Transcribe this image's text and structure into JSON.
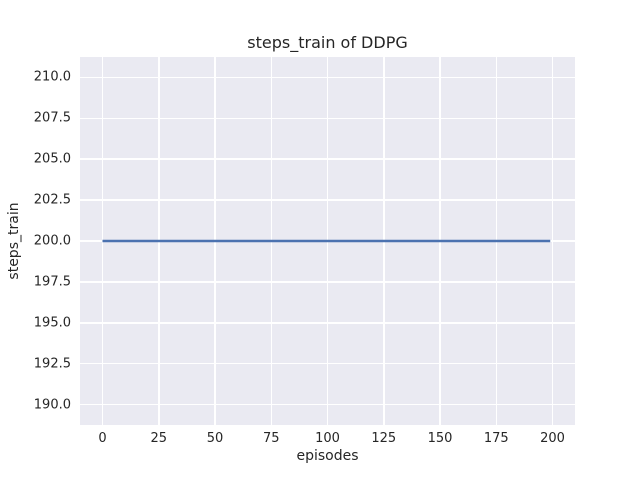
{
  "chart_data": {
    "type": "line",
    "title": "steps_train of DDPG",
    "xlabel": "episodes",
    "ylabel": "steps_train",
    "xlim": [
      -10,
      210
    ],
    "ylim": [
      188.75,
      211.25
    ],
    "xticks": [
      0,
      25,
      50,
      75,
      100,
      125,
      150,
      175,
      200
    ],
    "xtick_labels": [
      "0",
      "25",
      "50",
      "75",
      "100",
      "125",
      "150",
      "175",
      "200"
    ],
    "yticks": [
      190.0,
      192.5,
      195.0,
      197.5,
      200.0,
      202.5,
      205.0,
      207.5,
      210.0
    ],
    "ytick_labels": [
      "190.0",
      "192.5",
      "195.0",
      "197.5",
      "200.0",
      "202.5",
      "205.0",
      "207.5",
      "210.0"
    ],
    "grid": true,
    "legend_position": "none",
    "series": [
      {
        "name": "steps_train",
        "color": "#4c72b0",
        "x": [
          0,
          199
        ],
        "values": [
          200,
          200
        ]
      }
    ],
    "colors": {
      "figure_background": "#ffffff",
      "plot_background": "#eaeaf2",
      "gridline": "#ffffff",
      "text": "#262626"
    }
  }
}
